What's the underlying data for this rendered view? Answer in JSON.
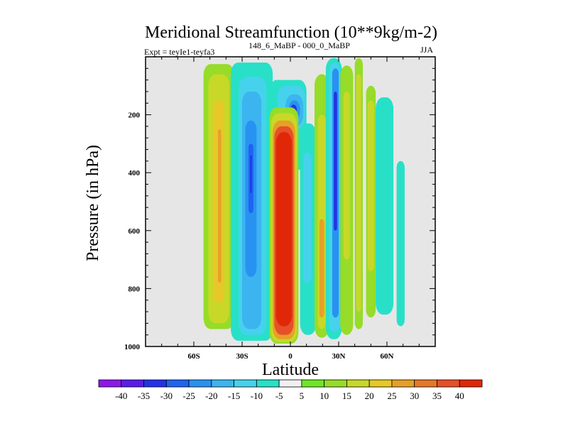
{
  "chart_data": {
    "type": "contour",
    "title": "Meridional Streamfunction (10**9kg/m-2)",
    "subtitle_left": "Expt = teyIe1-teyfa3",
    "subtitle_exp": "148_6_MaBP - 000_0_MaBP",
    "season": "JJA",
    "xlabel": "Latitude",
    "ylabel": "Pressure (in hPa)",
    "xlim": [
      -90,
      90
    ],
    "ylim": [
      1000,
      0
    ],
    "x_ticks": [
      {
        "value": -60,
        "label": "60S"
      },
      {
        "value": -30,
        "label": "30S"
      },
      {
        "value": 0,
        "label": "0"
      },
      {
        "value": 30,
        "label": "30N"
      },
      {
        "value": 60,
        "label": "60N"
      }
    ],
    "y_ticks": [
      {
        "value": 200,
        "label": "200"
      },
      {
        "value": 400,
        "label": "400"
      },
      {
        "value": 600,
        "label": "600"
      },
      {
        "value": 800,
        "label": "800"
      },
      {
        "value": 1000,
        "label": "1000"
      }
    ],
    "missing_color": "#e6e6e6",
    "colorbar": {
      "labels": [
        "-40",
        "-35",
        "-30",
        "-25",
        "-20",
        "-15",
        "-10",
        "-5",
        "5",
        "10",
        "15",
        "20",
        "25",
        "30",
        "35",
        "40"
      ],
      "colors": [
        "#8c18e8",
        "#5a1ee8",
        "#2432e6",
        "#1e64f0",
        "#2892f0",
        "#3cb4f0",
        "#46d2ec",
        "#28e0c8",
        "#f0f0f0",
        "#6ee628",
        "#96dc28",
        "#c8d828",
        "#e6c828",
        "#e6a028",
        "#e67828",
        "#e65028",
        "#e02808"
      ]
    },
    "bands": [
      {
        "lat_min": -54,
        "lat_max": -35,
        "p_top": 25,
        "p_bot": 940,
        "level": 10
      },
      {
        "lat_min": -51,
        "lat_max": -38,
        "p_top": 60,
        "p_bot": 920,
        "level": 15
      },
      {
        "lat_min": -48,
        "lat_max": -41,
        "p_top": 150,
        "p_bot": 850,
        "level": 20
      },
      {
        "lat_min": -45,
        "lat_max": -43,
        "p_top": 250,
        "p_bot": 780,
        "level": 25
      },
      {
        "lat_min": -37,
        "lat_max": -11,
        "p_top": 20,
        "p_bot": 980,
        "level": -5
      },
      {
        "lat_min": -32,
        "lat_max": -15,
        "p_top": 70,
        "p_bot": 960,
        "level": -10
      },
      {
        "lat_min": -30,
        "lat_max": -18,
        "p_top": 120,
        "p_bot": 940,
        "level": -15
      },
      {
        "lat_min": -28,
        "lat_max": -21,
        "p_top": 220,
        "p_bot": 760,
        "level": -20
      },
      {
        "lat_min": -26,
        "lat_max": -23,
        "p_top": 300,
        "p_bot": 540,
        "level": -25
      },
      {
        "lat_min": -25,
        "lat_max": -24,
        "p_top": 340,
        "p_bot": 470,
        "level": -30
      },
      {
        "lat_min": -13,
        "lat_max": 10,
        "p_top": 80,
        "p_bot": 390,
        "level": -5
      },
      {
        "lat_min": -8,
        "lat_max": 9,
        "p_top": 100,
        "p_bot": 250,
        "level": -10
      },
      {
        "lat_min": -3,
        "lat_max": 8,
        "p_top": 130,
        "p_bot": 240,
        "level": -15
      },
      {
        "lat_min": -1,
        "lat_max": 6,
        "p_top": 150,
        "p_bot": 220,
        "level": -20
      },
      {
        "lat_min": 0,
        "lat_max": 4,
        "p_top": 165,
        "p_bot": 205,
        "level": -30
      },
      {
        "lat_min": -13,
        "lat_max": 5,
        "p_top": 175,
        "p_bot": 990,
        "level": 10
      },
      {
        "lat_min": -12,
        "lat_max": 4,
        "p_top": 195,
        "p_bot": 985,
        "level": 15
      },
      {
        "lat_min": -11,
        "lat_max": 3,
        "p_top": 220,
        "p_bot": 975,
        "level": 25
      },
      {
        "lat_min": -10,
        "lat_max": 2,
        "p_top": 240,
        "p_bot": 960,
        "level": 35
      },
      {
        "lat_min": -9,
        "lat_max": 1,
        "p_top": 260,
        "p_bot": 930,
        "level": 40
      },
      {
        "lat_min": 6,
        "lat_max": 16,
        "p_top": 230,
        "p_bot": 960,
        "level": -5
      },
      {
        "lat_min": 8,
        "lat_max": 13,
        "p_top": 330,
        "p_bot": 780,
        "level": -10
      },
      {
        "lat_min": 15,
        "lat_max": 24,
        "p_top": 60,
        "p_bot": 970,
        "level": 10
      },
      {
        "lat_min": 17,
        "lat_max": 22,
        "p_top": 200,
        "p_bot": 940,
        "level": 15
      },
      {
        "lat_min": 18,
        "lat_max": 21,
        "p_top": 560,
        "p_bot": 900,
        "level": 25
      },
      {
        "lat_min": 22,
        "lat_max": 32,
        "p_top": 5,
        "p_bot": 975,
        "level": -5
      },
      {
        "lat_min": 24,
        "lat_max": 31,
        "p_top": 20,
        "p_bot": 950,
        "level": -10
      },
      {
        "lat_min": 26,
        "lat_max": 30,
        "p_top": 40,
        "p_bot": 900,
        "level": -20
      },
      {
        "lat_min": 27,
        "lat_max": 29,
        "p_top": 120,
        "p_bot": 600,
        "level": -30
      },
      {
        "lat_min": 31,
        "lat_max": 39,
        "p_top": 30,
        "p_bot": 960,
        "level": 10
      },
      {
        "lat_min": 33,
        "lat_max": 37,
        "p_top": 120,
        "p_bot": 700,
        "level": 15
      },
      {
        "lat_min": 40,
        "lat_max": 45,
        "p_top": 5,
        "p_bot": 940,
        "level": 10
      },
      {
        "lat_min": 41,
        "lat_max": 44,
        "p_top": 60,
        "p_bot": 880,
        "level": 15
      },
      {
        "lat_min": 47,
        "lat_max": 53,
        "p_top": 100,
        "p_bot": 900,
        "level": 10
      },
      {
        "lat_min": 48,
        "lat_max": 52,
        "p_top": 150,
        "p_bot": 740,
        "level": 15
      },
      {
        "lat_min": 53,
        "lat_max": 64,
        "p_top": 140,
        "p_bot": 890,
        "level": -5
      },
      {
        "lat_min": 66,
        "lat_max": 71,
        "p_top": 360,
        "p_bot": 930,
        "level": -5
      }
    ]
  }
}
